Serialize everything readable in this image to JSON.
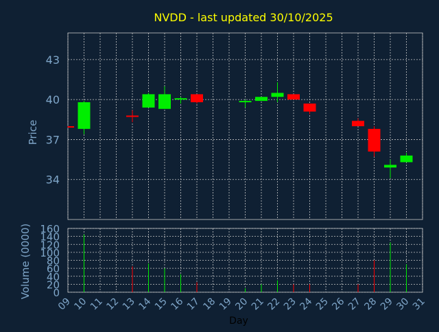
{
  "chart_data": {
    "type": "candlestick",
    "title": "NVDD - last updated 30/10/2025",
    "price_panel": {
      "ylabel": "Price",
      "ylim": [
        31.0,
        45.0
      ],
      "yticks": [
        34,
        37,
        40,
        43
      ]
    },
    "volume_panel": {
      "ylabel": "Volume (0000)",
      "ylim": [
        0,
        160
      ],
      "yticks": [
        0,
        20,
        40,
        60,
        80,
        100,
        120,
        140,
        160
      ]
    },
    "xlabel": "Day",
    "x_ticks": [
      "09",
      "10",
      "11",
      "12",
      "13",
      "14",
      "15",
      "16",
      "17",
      "18",
      "19",
      "20",
      "21",
      "22",
      "23",
      "24",
      "25",
      "26",
      "27",
      "28",
      "29",
      "30",
      "31"
    ],
    "grid": true,
    "colors": {
      "background": "#0f2033",
      "up": "#00ee00",
      "down": "#ff0000",
      "title": "#ffff00",
      "axis_text": "#7fa6c9",
      "grid": "#c8c8c8"
    },
    "candles": [
      {
        "day": 9,
        "open": 38.0,
        "high": 38.0,
        "low": 37.9,
        "close": 37.9,
        "volume": 0
      },
      {
        "day": 10,
        "open": 37.8,
        "high": 39.9,
        "low": 37.4,
        "close": 39.8,
        "volume": 145
      },
      {
        "day": 13,
        "open": 38.8,
        "high": 39.2,
        "low": 38.3,
        "close": 38.7,
        "volume": 65
      },
      {
        "day": 14,
        "open": 39.4,
        "high": 40.5,
        "low": 39.4,
        "close": 40.4,
        "volume": 72
      },
      {
        "day": 15,
        "open": 39.3,
        "high": 41.0,
        "low": 39.3,
        "close": 40.4,
        "volume": 60
      },
      {
        "day": 16,
        "open": 40.0,
        "high": 40.2,
        "low": 39.7,
        "close": 40.1,
        "volume": 45
      },
      {
        "day": 17,
        "open": 40.4,
        "high": 40.4,
        "low": 39.7,
        "close": 39.8,
        "volume": 25
      },
      {
        "day": 20,
        "open": 39.9,
        "high": 40.0,
        "low": 39.4,
        "close": 39.9,
        "volume": 10
      },
      {
        "day": 21,
        "open": 39.9,
        "high": 40.2,
        "low": 39.9,
        "close": 40.2,
        "volume": 20
      },
      {
        "day": 22,
        "open": 40.2,
        "high": 41.3,
        "low": 39.8,
        "close": 40.5,
        "volume": 30
      },
      {
        "day": 23,
        "open": 40.4,
        "high": 40.4,
        "low": 40.0,
        "close": 40.0,
        "volume": 20
      },
      {
        "day": 24,
        "open": 39.7,
        "high": 39.7,
        "low": 38.9,
        "close": 39.1,
        "volume": 20
      },
      {
        "day": 27,
        "open": 38.4,
        "high": 38.6,
        "low": 38.0,
        "close": 38.0,
        "volume": 20
      },
      {
        "day": 28,
        "open": 37.8,
        "high": 38.0,
        "low": 35.7,
        "close": 36.1,
        "volume": 80
      },
      {
        "day": 29,
        "open": 34.9,
        "high": 35.5,
        "low": 34.1,
        "close": 35.1,
        "volume": 125
      },
      {
        "day": 30,
        "open": 35.3,
        "high": 36.0,
        "low": 35.3,
        "close": 35.8,
        "volume": 70
      }
    ]
  }
}
